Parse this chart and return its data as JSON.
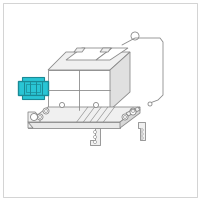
{
  "bg": "#ffffff",
  "lc": "#888888",
  "lw": 0.6,
  "clamp_fill": "#29c5d4",
  "clamp_edge": "#1a8a96",
  "part_fill": "#f0f0f0",
  "part_edge": "#888888",
  "white": "#ffffff"
}
